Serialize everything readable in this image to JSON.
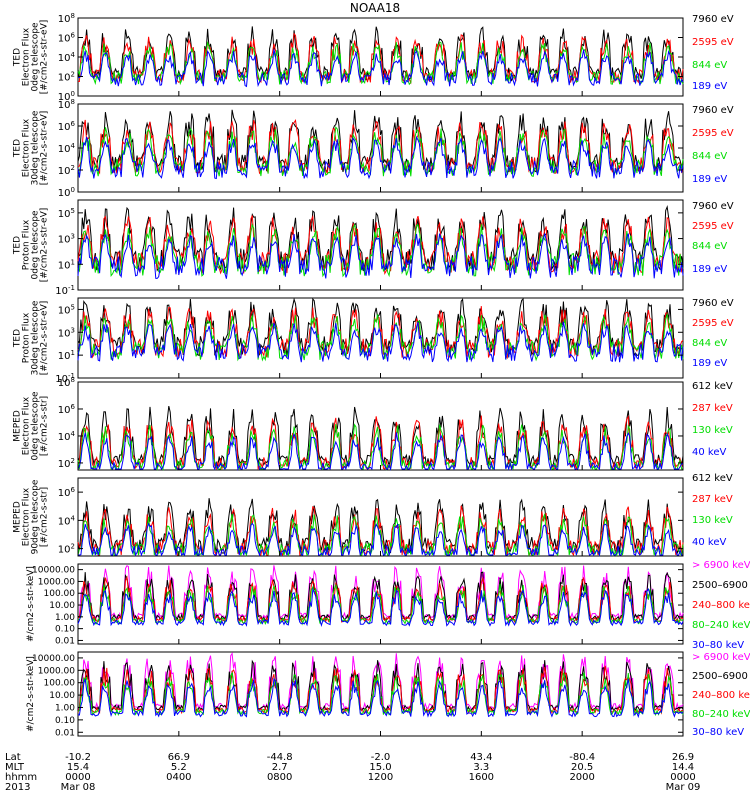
{
  "title": "NOAA18",
  "chart_data": [
    {
      "type": "line",
      "instrument": "TED",
      "ylabel": [
        "TED",
        "Electron Flux",
        "0deg telescope",
        "[#/cm2-s-str-eV]"
      ],
      "y_scale": "log",
      "y_ticks": [
        {
          "exp": "0",
          "value": 1
        },
        {
          "exp": "2",
          "value": 100
        },
        {
          "exp": "4",
          "value": 10000
        },
        {
          "exp": "6",
          "value": 1000000
        },
        {
          "exp": "8",
          "value": 100000000
        }
      ],
      "ylim": [
        1,
        100000000
      ],
      "baseline": 100,
      "noise_spread": 25,
      "series": [
        {
          "name": "7960 eV",
          "color": "#000000"
        },
        {
          "name": "2595 eV",
          "color": "#ff0000"
        },
        {
          "name": "844 eV",
          "color": "#00dd00"
        },
        {
          "name": "189 eV",
          "color": "#0000ff"
        }
      ]
    },
    {
      "type": "line",
      "instrument": "TED",
      "ylabel": [
        "TED",
        "Electron Flux",
        "30deg telescope",
        "[#/cm2-s-str-eV]"
      ],
      "y_scale": "log",
      "y_ticks": [
        {
          "exp": "0",
          "value": 1
        },
        {
          "exp": "2",
          "value": 100
        },
        {
          "exp": "4",
          "value": 10000
        },
        {
          "exp": "6",
          "value": 1000000
        },
        {
          "exp": "8",
          "value": 100000000
        }
      ],
      "ylim": [
        1,
        100000000
      ],
      "baseline": 200,
      "noise_spread": 40,
      "series": [
        {
          "name": "7960 eV",
          "color": "#000000"
        },
        {
          "name": "2595 eV",
          "color": "#ff0000"
        },
        {
          "name": "844 eV",
          "color": "#00dd00"
        },
        {
          "name": "189 eV",
          "color": "#0000ff"
        }
      ]
    },
    {
      "type": "line",
      "instrument": "TED",
      "ylabel": [
        "TED",
        "Proton Flux",
        "0deg telescope",
        "[#/cm2-s-str-eV]"
      ],
      "y_scale": "log",
      "y_ticks": [
        {
          "exp": "-1",
          "value": 0.1
        },
        {
          "exp": "1",
          "value": 10
        },
        {
          "exp": "3",
          "value": 1000
        },
        {
          "exp": "5",
          "value": 100000
        }
      ],
      "ylim": [
        0.1,
        1000000
      ],
      "baseline": 10,
      "noise_spread": 60,
      "series": [
        {
          "name": "7960 eV",
          "color": "#000000"
        },
        {
          "name": "2595 eV",
          "color": "#ff0000"
        },
        {
          "name": "844 eV",
          "color": "#00dd00"
        },
        {
          "name": "189 eV",
          "color": "#0000ff"
        }
      ]
    },
    {
      "type": "line",
      "instrument": "TED",
      "ylabel": [
        "TED",
        "Proton Flux",
        "30deg telescope",
        "[#/cm2-s-str-eV]"
      ],
      "y_scale": "log",
      "y_ticks": [
        {
          "exp": "-1",
          "value": 0.1
        },
        {
          "exp": "1",
          "value": 10
        },
        {
          "exp": "3",
          "value": 1000
        },
        {
          "exp": "5",
          "value": 100000
        }
      ],
      "ylim": [
        0.1,
        1000000
      ],
      "baseline": 30,
      "noise_spread": 50,
      "series": [
        {
          "name": "7960 eV",
          "color": "#000000"
        },
        {
          "name": "2595 eV",
          "color": "#ff0000"
        },
        {
          "name": "844 eV",
          "color": "#00dd00"
        },
        {
          "name": "189 eV",
          "color": "#0000ff"
        }
      ]
    },
    {
      "type": "line",
      "instrument": "MEPED",
      "ylabel": [
        "MEPED",
        "Electron Flux",
        "0deg telescope",
        "[#/cm2-s-str]"
      ],
      "y_scale": "log",
      "y_ticks": [
        {
          "exp": "2",
          "value": 100
        },
        {
          "exp": "4",
          "value": 10000
        },
        {
          "exp": "6",
          "value": 1000000
        },
        {
          "exp": "8",
          "value": 100000000
        }
      ],
      "ylim": [
        30,
        100000000
      ],
      "baseline": 100,
      "noise_spread": 8,
      "series": [
        {
          "name": "612 keV",
          "color": "#000000"
        },
        {
          "name": "287 keV",
          "color": "#ff0000"
        },
        {
          "name": "130 keV",
          "color": "#00dd00"
        },
        {
          "name": "40 keV",
          "color": "#0000ff"
        }
      ]
    },
    {
      "type": "line",
      "instrument": "MEPED",
      "ylabel": [
        "MEPED",
        "Electron Flux",
        "90deg telescope",
        "[#/cm2-s-str]"
      ],
      "y_scale": "log",
      "y_ticks": [
        {
          "exp": "2",
          "value": 100
        },
        {
          "exp": "4",
          "value": 10000
        },
        {
          "exp": "6",
          "value": 1000000
        }
      ],
      "ylim": [
        30,
        10000000
      ],
      "baseline": 100,
      "noise_spread": 15,
      "series": [
        {
          "name": "612 keV",
          "color": "#000000"
        },
        {
          "name": "287 keV",
          "color": "#ff0000"
        },
        {
          "name": "130 keV",
          "color": "#00dd00"
        },
        {
          "name": "40 keV",
          "color": "#0000ff"
        }
      ]
    },
    {
      "type": "line",
      "instrument": "MEPED",
      "ylabel": [
        "#/cm2-s-str-keV]"
      ],
      "y_scale": "log",
      "y_ticks": [
        {
          "label": "0.01",
          "value": 0.01
        },
        {
          "label": "0.10",
          "value": 0.1
        },
        {
          "label": "1.00",
          "value": 1
        },
        {
          "label": "10.00",
          "value": 10
        },
        {
          "label": "100.00",
          "value": 100
        },
        {
          "label": "1000.00",
          "value": 1000
        },
        {
          "label": "10000.00",
          "value": 10000
        }
      ],
      "ylim": [
        0.005,
        30000
      ],
      "baseline": 1,
      "noise_spread": 3,
      "series": [
        {
          "name": "> 6900 keV",
          "color": "#ff00ff"
        },
        {
          "name": "2500–6900",
          "color": "#000000"
        },
        {
          "name": "240–800 ke",
          "color": "#ff0000"
        },
        {
          "name": "80–240 keV",
          "color": "#00dd00"
        },
        {
          "name": "30–80 keV",
          "color": "#0000ff"
        }
      ]
    },
    {
      "type": "line",
      "instrument": "MEPED",
      "ylabel": [
        "#/cm2-s-str-keV]"
      ],
      "y_scale": "log",
      "y_ticks": [
        {
          "label": "0.01",
          "value": 0.01
        },
        {
          "label": "0.10",
          "value": 0.1
        },
        {
          "label": "1.00",
          "value": 1
        },
        {
          "label": "10.00",
          "value": 10
        },
        {
          "label": "100.00",
          "value": 100
        },
        {
          "label": "1000.00",
          "value": 1000
        },
        {
          "label": "10000.00",
          "value": 10000
        }
      ],
      "ylim": [
        0.005,
        30000
      ],
      "baseline": 1,
      "noise_spread": 3,
      "series": [
        {
          "name": "> 6900 keV",
          "color": "#ff00ff"
        },
        {
          "name": "2500–6900",
          "color": "#000000"
        },
        {
          "name": "240–800 ke",
          "color": "#ff0000"
        },
        {
          "name": "80–240 keV",
          "color": "#00dd00"
        },
        {
          "name": "30–80 keV",
          "color": "#0000ff"
        }
      ]
    }
  ],
  "x_axis": {
    "row_labels": [
      "Lat",
      "MLT",
      "hhmm",
      "2013"
    ],
    "ticks": [
      {
        "lat": "-10.2",
        "mlt": "15.4",
        "hhmm": "0000",
        "date": "Mar 08"
      },
      {
        "lat": "66.9",
        "mlt": "5.2",
        "hhmm": "0400",
        "date": ""
      },
      {
        "lat": "-44.8",
        "mlt": "2.7",
        "hhmm": "0800",
        "date": ""
      },
      {
        "lat": "-2.0",
        "mlt": "15.0",
        "hhmm": "1200",
        "date": ""
      },
      {
        "lat": "43.4",
        "mlt": "3.3",
        "hhmm": "1600",
        "date": ""
      },
      {
        "lat": "-80.4",
        "mlt": "20.5",
        "hhmm": "2000",
        "date": ""
      },
      {
        "lat": "26.9",
        "mlt": "14.4",
        "hhmm": "0000",
        "date": "Mar 09"
      }
    ]
  }
}
